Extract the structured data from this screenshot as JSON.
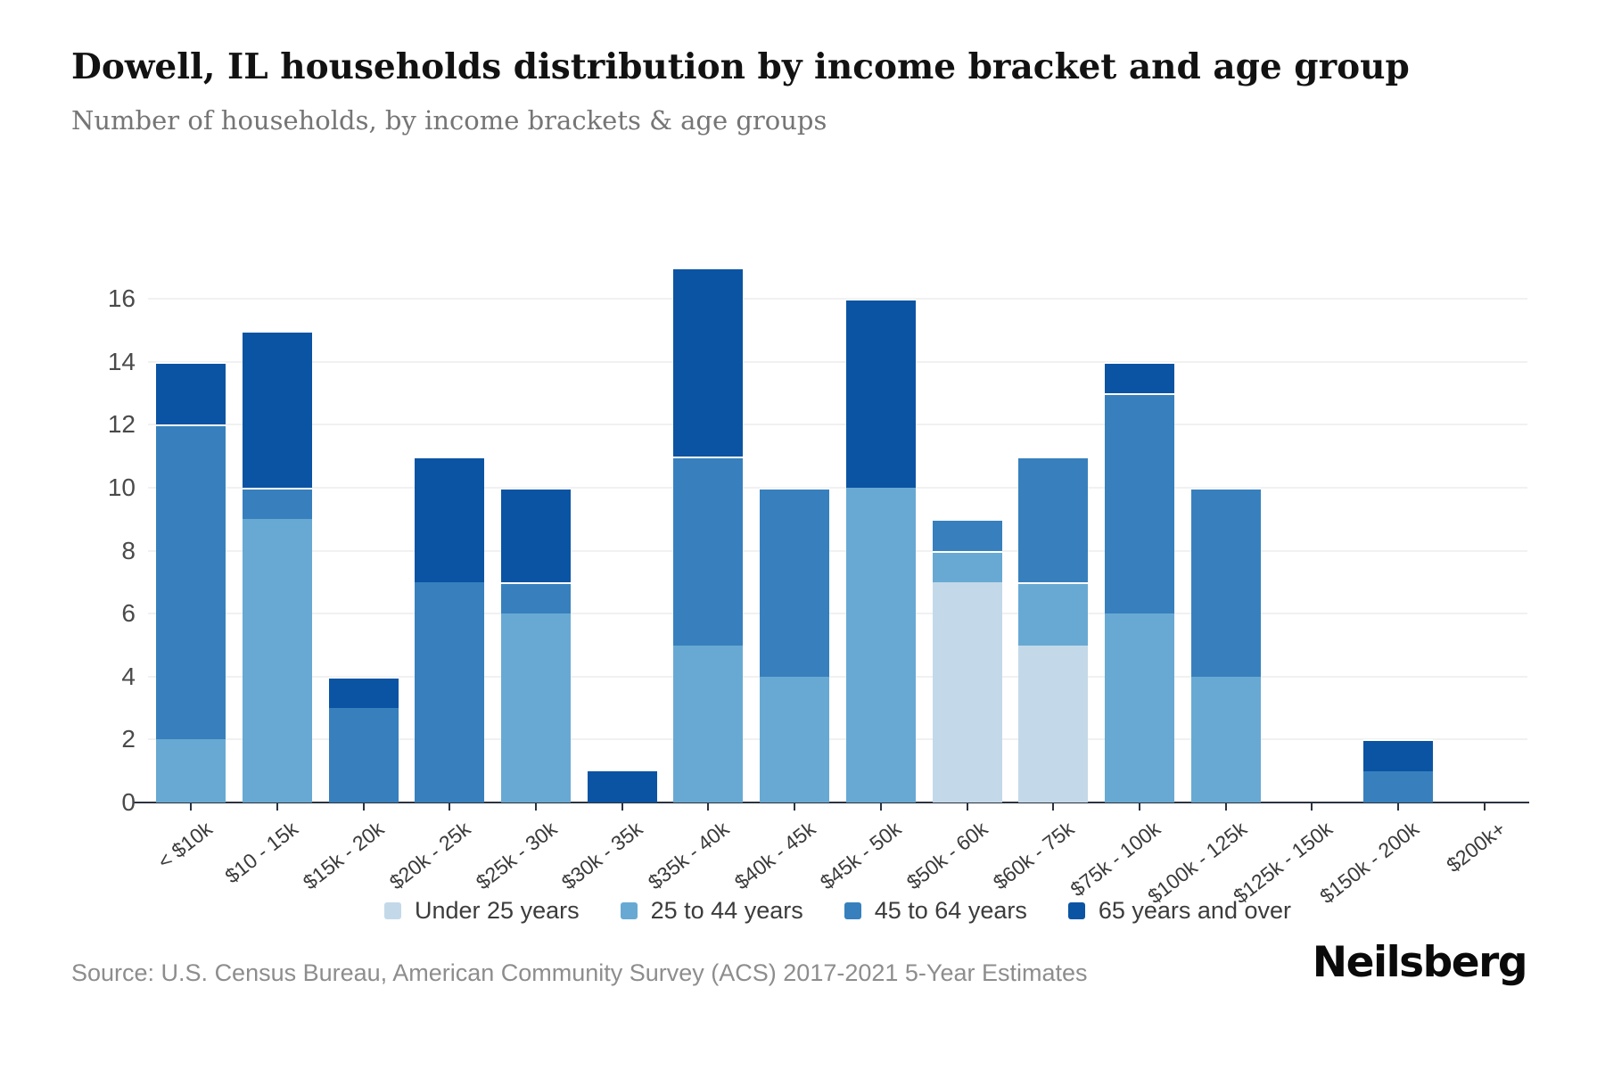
{
  "header": {
    "title": "Dowell, IL households distribution by income bracket and age group",
    "subtitle": "Number of households, by income brackets & age groups"
  },
  "chart_data": {
    "type": "bar",
    "stacked": true,
    "title": "Dowell, IL households distribution by income bracket and age group",
    "subtitle": "Number of households, by income brackets & age groups",
    "categories": [
      "< $10k",
      "$10 - 15k",
      "$15k - 20k",
      "$20k - 25k",
      "$25k - 30k",
      "$30k - 35k",
      "$35k - 40k",
      "$40k - 45k",
      "$45k - 50k",
      "$50k - 60k",
      "$60k - 75k",
      "$75k - 100k",
      "$100k - 125k",
      "$125k - 150k",
      "$150k - 200k",
      "$200k+"
    ],
    "series": [
      {
        "name": "Under 25 years",
        "color": "#c3d9e9",
        "values": [
          0,
          0,
          0,
          0,
          0,
          0,
          0,
          0,
          0,
          7,
          5,
          0,
          0,
          0,
          0,
          0
        ]
      },
      {
        "name": "25 to 44 years",
        "color": "#68a9d3",
        "values": [
          2,
          9,
          0,
          0,
          6,
          0,
          5,
          4,
          10,
          1,
          2,
          6,
          4,
          0,
          0,
          0
        ]
      },
      {
        "name": "45 to 64 years",
        "color": "#3780bd",
        "values": [
          10,
          1,
          3,
          7,
          1,
          0,
          6,
          6,
          0,
          1,
          4,
          7,
          6,
          0,
          1,
          0
        ]
      },
      {
        "name": "65 years and over",
        "color": "#0b54a3",
        "values": [
          2,
          5,
          1,
          4,
          3,
          1,
          6,
          0,
          6,
          0,
          0,
          1,
          0,
          0,
          1,
          0
        ]
      }
    ],
    "totals": [
      14,
      15,
      4,
      11,
      10,
      1,
      17,
      10,
      16,
      9,
      11,
      14,
      10,
      0,
      2,
      0
    ],
    "xlabel": "",
    "ylabel": "",
    "yticks": [
      0,
      2,
      4,
      6,
      8,
      10,
      12,
      14,
      16
    ],
    "ylim": [
      0,
      17
    ],
    "grid": true,
    "legend_position": "bottom"
  },
  "footer": {
    "source": "Source: U.S. Census Bureau, American Community Survey (ACS) 2017-2021 5-Year Estimates",
    "brand": "Neilsberg"
  }
}
